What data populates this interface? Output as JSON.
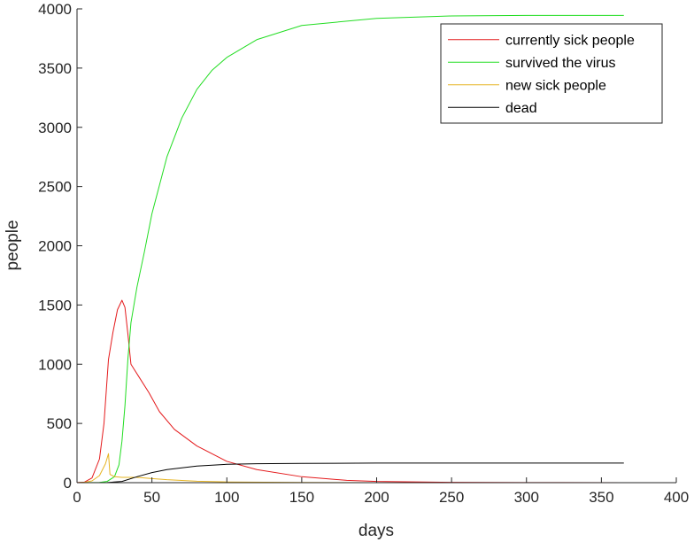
{
  "chart_data": {
    "type": "line",
    "xlabel": "days",
    "ylabel": "people",
    "xlim": [
      0,
      400
    ],
    "ylim": [
      0,
      4000
    ],
    "xticks": [
      0,
      50,
      100,
      150,
      200,
      250,
      300,
      350,
      400
    ],
    "yticks": [
      0,
      500,
      1000,
      1500,
      2000,
      2500,
      3000,
      3500,
      4000
    ],
    "grid": false,
    "legend_position": "top-right",
    "series": [
      {
        "name": "currently sick people",
        "color": "#e41a1c",
        "x": [
          0,
          5,
          10,
          15,
          18,
          21,
          24,
          27,
          30,
          32,
          34,
          36,
          38,
          42,
          48,
          55,
          65,
          80,
          100,
          120,
          150,
          180,
          200,
          250,
          300,
          365
        ],
        "y": [
          1,
          5,
          40,
          200,
          500,
          1040,
          1270,
          1460,
          1540,
          1480,
          1250,
          1000,
          960,
          880,
          760,
          600,
          450,
          310,
          180,
          110,
          50,
          20,
          10,
          3,
          1,
          0
        ]
      },
      {
        "name": "survived the virus",
        "color": "#22dd22",
        "x": [
          0,
          15,
          20,
          25,
          28,
          30,
          32,
          34,
          36,
          40,
          45,
          50,
          60,
          70,
          80,
          90,
          100,
          120,
          150,
          200,
          250,
          300,
          365
        ],
        "y": [
          0,
          2,
          10,
          50,
          150,
          350,
          650,
          1050,
          1350,
          1650,
          1950,
          2270,
          2750,
          3080,
          3320,
          3480,
          3590,
          3740,
          3860,
          3920,
          3940,
          3945,
          3945
        ]
      },
      {
        "name": "new sick people",
        "color": "#e6b422",
        "x": [
          0,
          5,
          10,
          15,
          19,
          21,
          22,
          25,
          30,
          40,
          50,
          60,
          80,
          100,
          150,
          200,
          365
        ],
        "y": [
          0,
          3,
          15,
          60,
          160,
          245,
          70,
          50,
          45,
          45,
          35,
          25,
          12,
          6,
          2,
          0,
          0
        ]
      },
      {
        "name": "dead",
        "color": "#000000",
        "x": [
          0,
          20,
          30,
          40,
          50,
          60,
          80,
          100,
          120,
          150,
          200,
          250,
          300,
          365
        ],
        "y": [
          0,
          1,
          10,
          50,
          85,
          110,
          140,
          155,
          160,
          163,
          165,
          165,
          165,
          165
        ]
      }
    ]
  }
}
